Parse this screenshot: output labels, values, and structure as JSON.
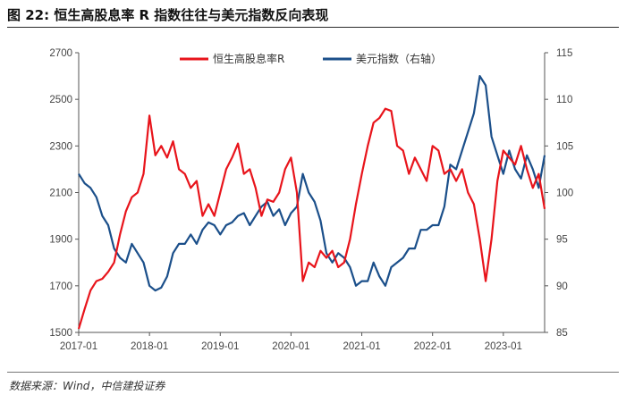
{
  "header": {
    "title": "图 22:  恒生高股息率 R 指数往往与美元指数反向表现"
  },
  "footer": {
    "source": "数据来源：Wind，中信建投证券"
  },
  "chart_data": {
    "type": "line",
    "title": "图 22:  恒生高股息率 R 指数往往与美元指数反向表现",
    "x_ticks": [
      "2017-01",
      "2018-01",
      "2019-01",
      "2020-01",
      "2021-01",
      "2022-01",
      "2023-01"
    ],
    "x_range": [
      "2017-01",
      "2023-08"
    ],
    "y_left": {
      "range": [
        1500,
        2700
      ],
      "ticks": [
        "1500",
        "1700",
        "1900",
        "2100",
        "2300",
        "2500",
        "2700"
      ]
    },
    "y_right": {
      "range": [
        85,
        115
      ],
      "ticks": [
        "85",
        "90",
        "95",
        "100",
        "105",
        "110",
        "115"
      ]
    },
    "legend_position": "top-center",
    "grid": false,
    "series": [
      {
        "name": "恒生高股息率R",
        "axis": "left",
        "color": "#e8141b",
        "points": [
          [
            "2017-01",
            1515
          ],
          [
            "2017-02",
            1600
          ],
          [
            "2017-03",
            1680
          ],
          [
            "2017-04",
            1720
          ],
          [
            "2017-05",
            1730
          ],
          [
            "2017-06",
            1760
          ],
          [
            "2017-07",
            1800
          ],
          [
            "2017-08",
            1920
          ],
          [
            "2017-09",
            2020
          ],
          [
            "2017-10",
            2080
          ],
          [
            "2017-11",
            2100
          ],
          [
            "2017-12",
            2180
          ],
          [
            "2018-01",
            2430
          ],
          [
            "2018-02",
            2260
          ],
          [
            "2018-03",
            2300
          ],
          [
            "2018-04",
            2250
          ],
          [
            "2018-05",
            2320
          ],
          [
            "2018-06",
            2200
          ],
          [
            "2018-07",
            2180
          ],
          [
            "2018-08",
            2120
          ],
          [
            "2018-09",
            2150
          ],
          [
            "2018-10",
            2000
          ],
          [
            "2018-11",
            2050
          ],
          [
            "2018-12",
            2000
          ],
          [
            "2019-01",
            2100
          ],
          [
            "2019-02",
            2200
          ],
          [
            "2019-03",
            2250
          ],
          [
            "2019-04",
            2310
          ],
          [
            "2019-05",
            2180
          ],
          [
            "2019-06",
            2200
          ],
          [
            "2019-07",
            2120
          ],
          [
            "2019-08",
            2000
          ],
          [
            "2019-09",
            2070
          ],
          [
            "2019-10",
            2060
          ],
          [
            "2019-11",
            2100
          ],
          [
            "2019-12",
            2200
          ],
          [
            "2020-01",
            2250
          ],
          [
            "2020-02",
            2100
          ],
          [
            "2020-03",
            1720
          ],
          [
            "2020-04",
            1800
          ],
          [
            "2020-05",
            1780
          ],
          [
            "2020-06",
            1850
          ],
          [
            "2020-07",
            1820
          ],
          [
            "2020-08",
            1850
          ],
          [
            "2020-09",
            1780
          ],
          [
            "2020-10",
            1800
          ],
          [
            "2020-11",
            1900
          ],
          [
            "2020-12",
            2050
          ],
          [
            "2021-01",
            2180
          ],
          [
            "2021-02",
            2300
          ],
          [
            "2021-03",
            2400
          ],
          [
            "2021-04",
            2420
          ],
          [
            "2021-05",
            2460
          ],
          [
            "2021-06",
            2450
          ],
          [
            "2021-07",
            2300
          ],
          [
            "2021-08",
            2280
          ],
          [
            "2021-09",
            2180
          ],
          [
            "2021-10",
            2250
          ],
          [
            "2021-11",
            2200
          ],
          [
            "2021-12",
            2150
          ],
          [
            "2022-01",
            2300
          ],
          [
            "2022-02",
            2280
          ],
          [
            "2022-03",
            2180
          ],
          [
            "2022-04",
            2200
          ],
          [
            "2022-05",
            2150
          ],
          [
            "2022-06",
            2200
          ],
          [
            "2022-07",
            2100
          ],
          [
            "2022-08",
            2050
          ],
          [
            "2022-09",
            1900
          ],
          [
            "2022-10",
            1720
          ],
          [
            "2022-11",
            1900
          ],
          [
            "2022-12",
            2150
          ],
          [
            "2023-01",
            2280
          ],
          [
            "2023-02",
            2250
          ],
          [
            "2023-03",
            2220
          ],
          [
            "2023-04",
            2300
          ],
          [
            "2023-05",
            2200
          ],
          [
            "2023-06",
            2120
          ],
          [
            "2023-07",
            2180
          ],
          [
            "2023-08",
            2030
          ]
        ]
      },
      {
        "name": "美元指数（右轴）",
        "axis": "right",
        "color": "#1b4f8a",
        "points": [
          [
            "2017-01",
            102.0
          ],
          [
            "2017-02",
            101.0
          ],
          [
            "2017-03",
            100.5
          ],
          [
            "2017-04",
            99.5
          ],
          [
            "2017-05",
            97.5
          ],
          [
            "2017-06",
            96.5
          ],
          [
            "2017-07",
            94.0
          ],
          [
            "2017-08",
            93.0
          ],
          [
            "2017-09",
            92.5
          ],
          [
            "2017-10",
            94.5
          ],
          [
            "2017-11",
            93.5
          ],
          [
            "2017-12",
            92.5
          ],
          [
            "2018-01",
            90.0
          ],
          [
            "2018-02",
            89.5
          ],
          [
            "2018-03",
            89.8
          ],
          [
            "2018-04",
            91.0
          ],
          [
            "2018-05",
            93.5
          ],
          [
            "2018-06",
            94.5
          ],
          [
            "2018-07",
            94.5
          ],
          [
            "2018-08",
            95.5
          ],
          [
            "2018-09",
            94.5
          ],
          [
            "2018-10",
            96.0
          ],
          [
            "2018-11",
            96.8
          ],
          [
            "2018-12",
            96.5
          ],
          [
            "2019-01",
            95.5
          ],
          [
            "2019-02",
            96.5
          ],
          [
            "2019-03",
            96.8
          ],
          [
            "2019-04",
            97.5
          ],
          [
            "2019-05",
            97.8
          ],
          [
            "2019-06",
            96.5
          ],
          [
            "2019-07",
            97.5
          ],
          [
            "2019-08",
            98.5
          ],
          [
            "2019-09",
            99.0
          ],
          [
            "2019-10",
            97.5
          ],
          [
            "2019-11",
            98.2
          ],
          [
            "2019-12",
            96.5
          ],
          [
            "2020-01",
            97.8
          ],
          [
            "2020-02",
            98.5
          ],
          [
            "2020-03",
            102.0
          ],
          [
            "2020-04",
            100.0
          ],
          [
            "2020-05",
            99.0
          ],
          [
            "2020-06",
            97.0
          ],
          [
            "2020-07",
            93.5
          ],
          [
            "2020-08",
            92.5
          ],
          [
            "2020-09",
            93.5
          ],
          [
            "2020-10",
            93.0
          ],
          [
            "2020-11",
            92.0
          ],
          [
            "2020-12",
            90.0
          ],
          [
            "2021-01",
            90.5
          ],
          [
            "2021-02",
            90.5
          ],
          [
            "2021-03",
            92.5
          ],
          [
            "2021-04",
            91.0
          ],
          [
            "2021-05",
            90.0
          ],
          [
            "2021-06",
            92.0
          ],
          [
            "2021-07",
            92.5
          ],
          [
            "2021-08",
            93.0
          ],
          [
            "2021-09",
            94.0
          ],
          [
            "2021-10",
            94.0
          ],
          [
            "2021-11",
            96.0
          ],
          [
            "2021-12",
            96.0
          ],
          [
            "2022-01",
            96.5
          ],
          [
            "2022-02",
            96.5
          ],
          [
            "2022-03",
            98.5
          ],
          [
            "2022-04",
            103.0
          ],
          [
            "2022-05",
            102.5
          ],
          [
            "2022-06",
            104.5
          ],
          [
            "2022-07",
            106.5
          ],
          [
            "2022-08",
            108.5
          ],
          [
            "2022-09",
            112.5
          ],
          [
            "2022-10",
            111.5
          ],
          [
            "2022-11",
            106.0
          ],
          [
            "2022-12",
            104.0
          ],
          [
            "2023-01",
            102.0
          ],
          [
            "2023-02",
            104.5
          ],
          [
            "2023-03",
            102.5
          ],
          [
            "2023-04",
            101.5
          ],
          [
            "2023-05",
            104.0
          ],
          [
            "2023-06",
            102.5
          ],
          [
            "2023-07",
            100.5
          ],
          [
            "2023-08",
            104.0
          ]
        ]
      }
    ]
  }
}
